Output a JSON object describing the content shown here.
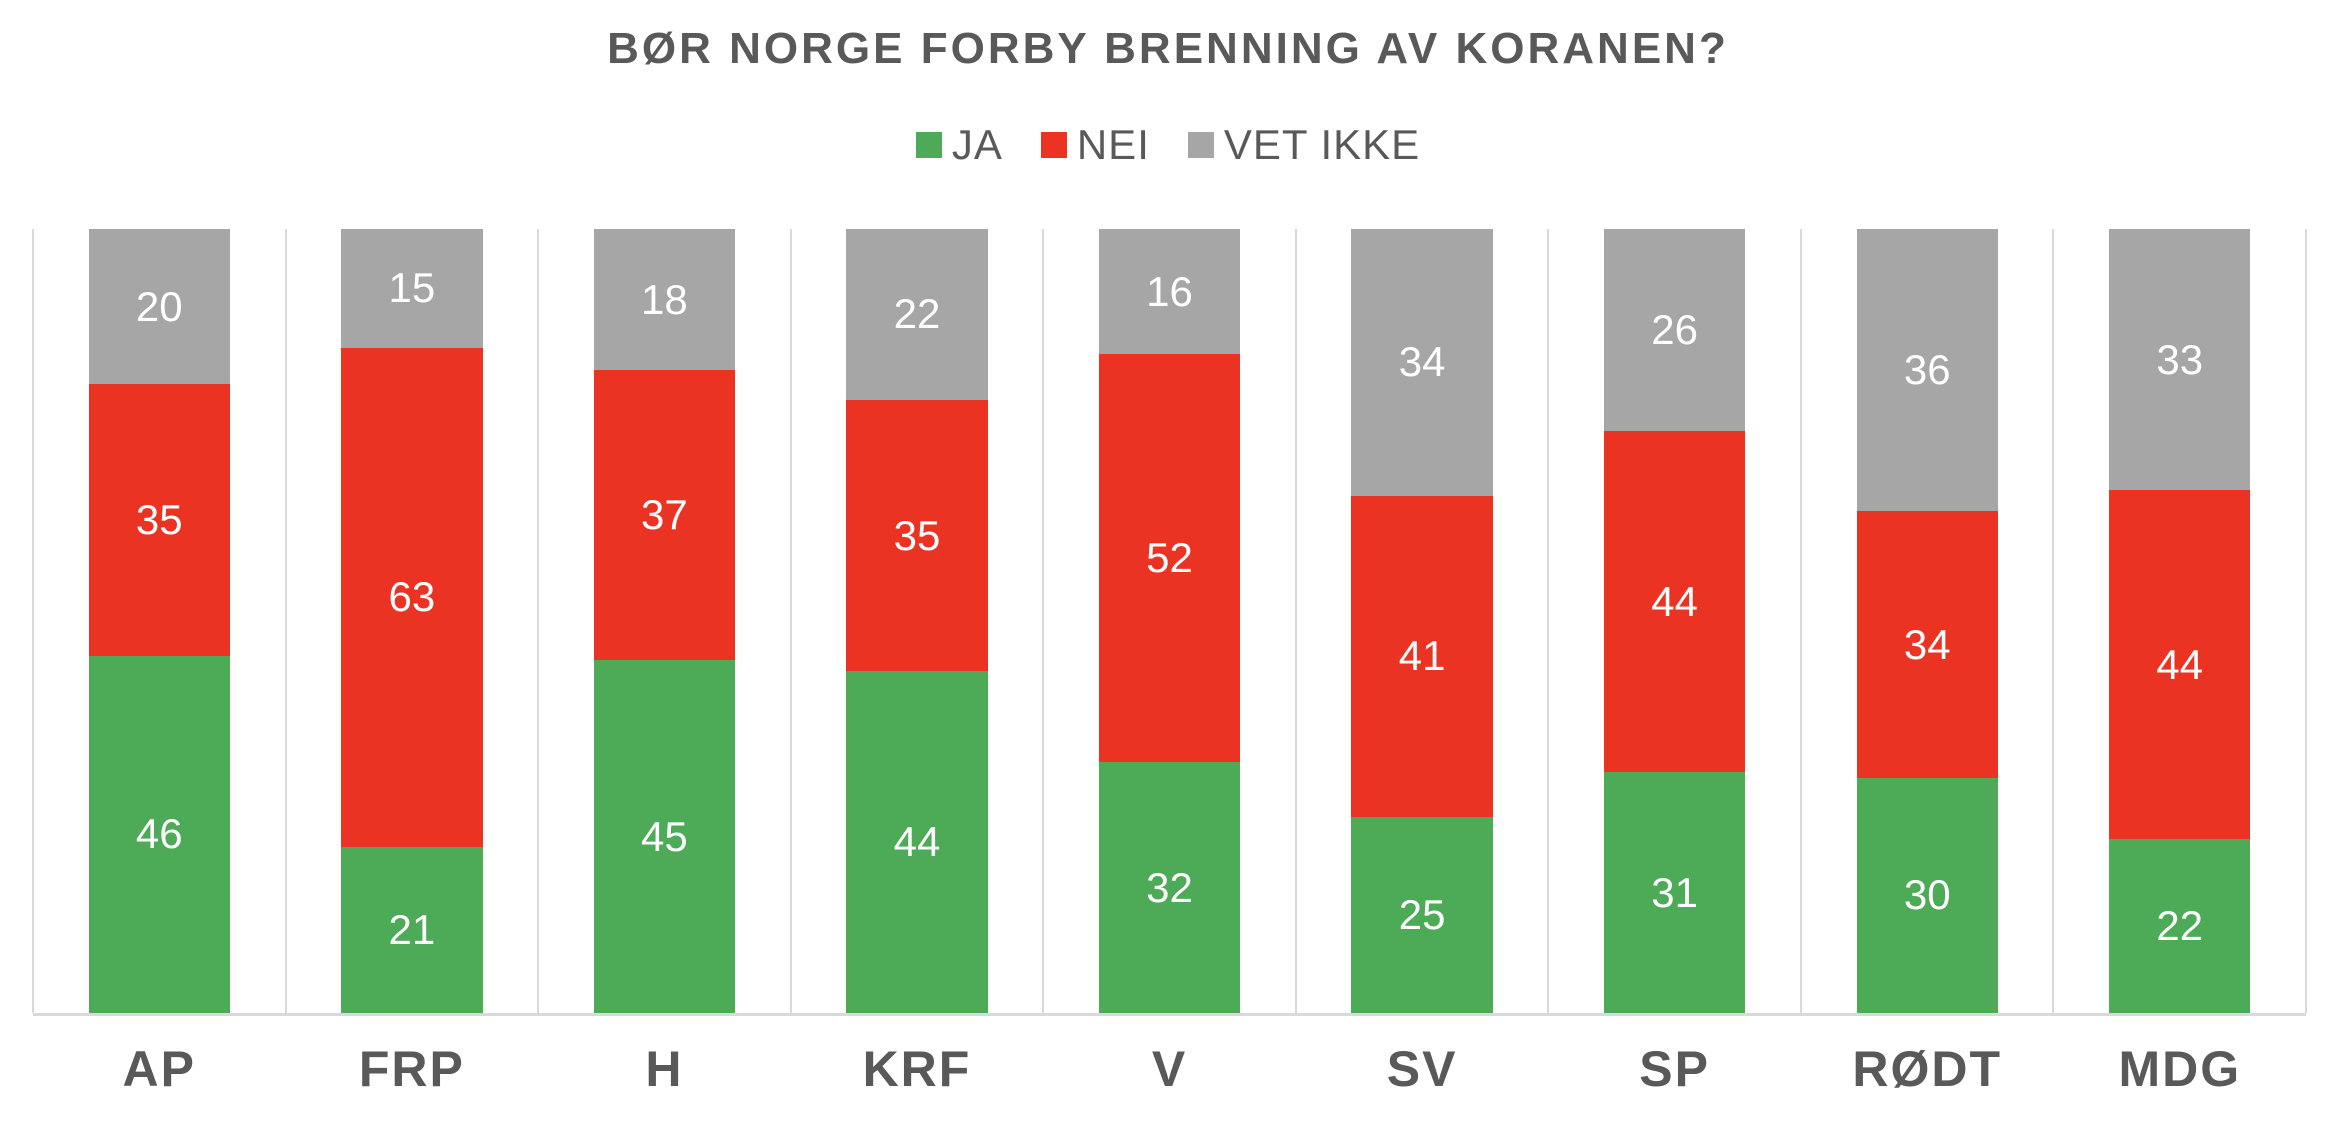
{
  "title": "BØR NORGE FORBY BRENNING AV KORANEN?",
  "legend": [
    {
      "label": "JA",
      "color": "#4DAA57"
    },
    {
      "label": "NEI",
      "color": "#EB3323"
    },
    {
      "label": "VET IKKE",
      "color": "#A6A6A6"
    }
  ],
  "colors": {
    "ja_green": "#4DAA57",
    "nei_red": "#EB3323",
    "vet_ikke_gray": "#A6A6A6",
    "heading_text": "#595959",
    "value_label_text": "#FFFFFF",
    "gridline": "#D9D9D9",
    "background": "#FFFFFF"
  },
  "chart_data": {
    "type": "bar",
    "variant": "100-percent-stacked-column",
    "title": "BØR NORGE FORBY BRENNING AV KORANEN?",
    "categories": [
      "AP",
      "FRP",
      "H",
      "KRF",
      "V",
      "SV",
      "SP",
      "RØDT",
      "MDG"
    ],
    "series": [
      {
        "name": "JA",
        "color": "#4DAA57",
        "values": [
          46,
          21,
          45,
          44,
          32,
          25,
          31,
          30,
          22
        ]
      },
      {
        "name": "NEI",
        "color": "#EB3323",
        "values": [
          35,
          63,
          37,
          35,
          52,
          41,
          44,
          34,
          44
        ]
      },
      {
        "name": "VET IKKE",
        "color": "#A6A6A6",
        "values": [
          20,
          15,
          18,
          22,
          16,
          34,
          26,
          36,
          33
        ]
      }
    ],
    "stack_order_bottom_to_top": [
      "JA",
      "NEI",
      "VET IKKE"
    ],
    "value_labels": "inside-center-white",
    "legend_position": "top-center",
    "grid": "vertical category separator lines only",
    "y_axis": "hidden",
    "x_axis_line": true
  }
}
